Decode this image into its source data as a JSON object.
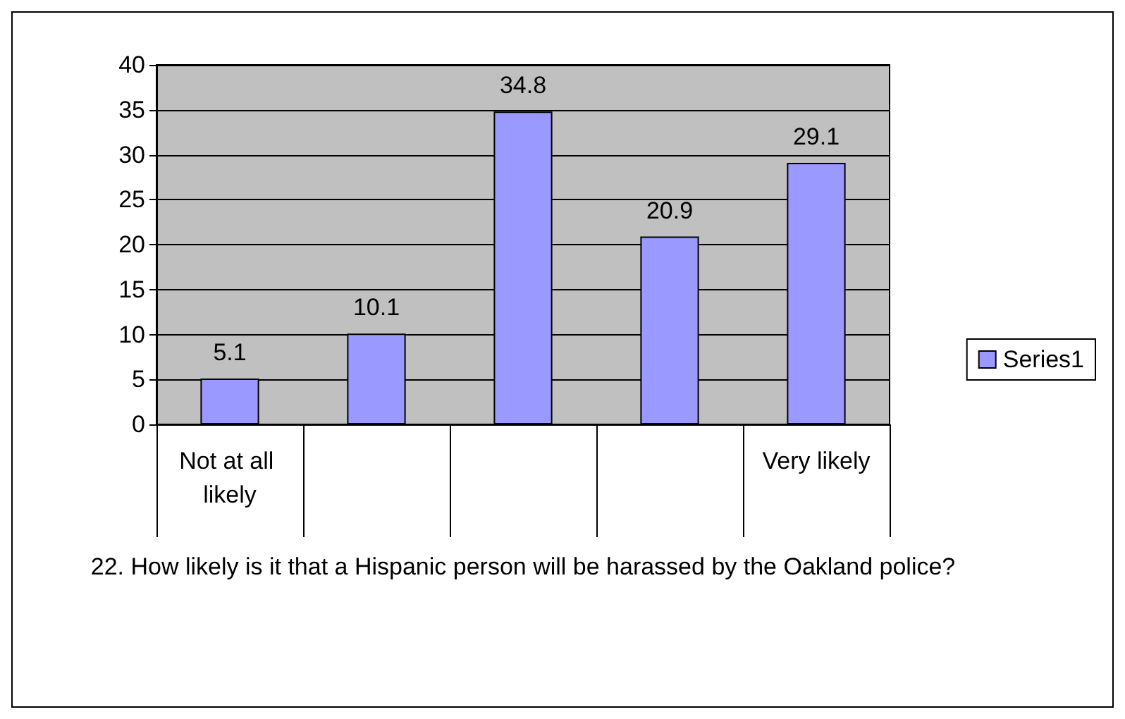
{
  "chart_data": {
    "type": "bar",
    "categories": [
      "Not at all likely",
      null,
      null,
      null,
      "Very likely"
    ],
    "series": [
      {
        "name": "Series1",
        "color": "#9999ff",
        "values": [
          5.1,
          10.1,
          34.8,
          20.9,
          29.1
        ]
      }
    ],
    "xlabel": "22. How likely is it that a Hispanic person will be harassed by the Oakland police?",
    "ylim": [
      0,
      40
    ],
    "yticks": [
      0,
      5,
      10,
      15,
      20,
      25,
      30,
      35,
      40
    ],
    "grid": "y",
    "legend": "right",
    "data_labels": true
  }
}
